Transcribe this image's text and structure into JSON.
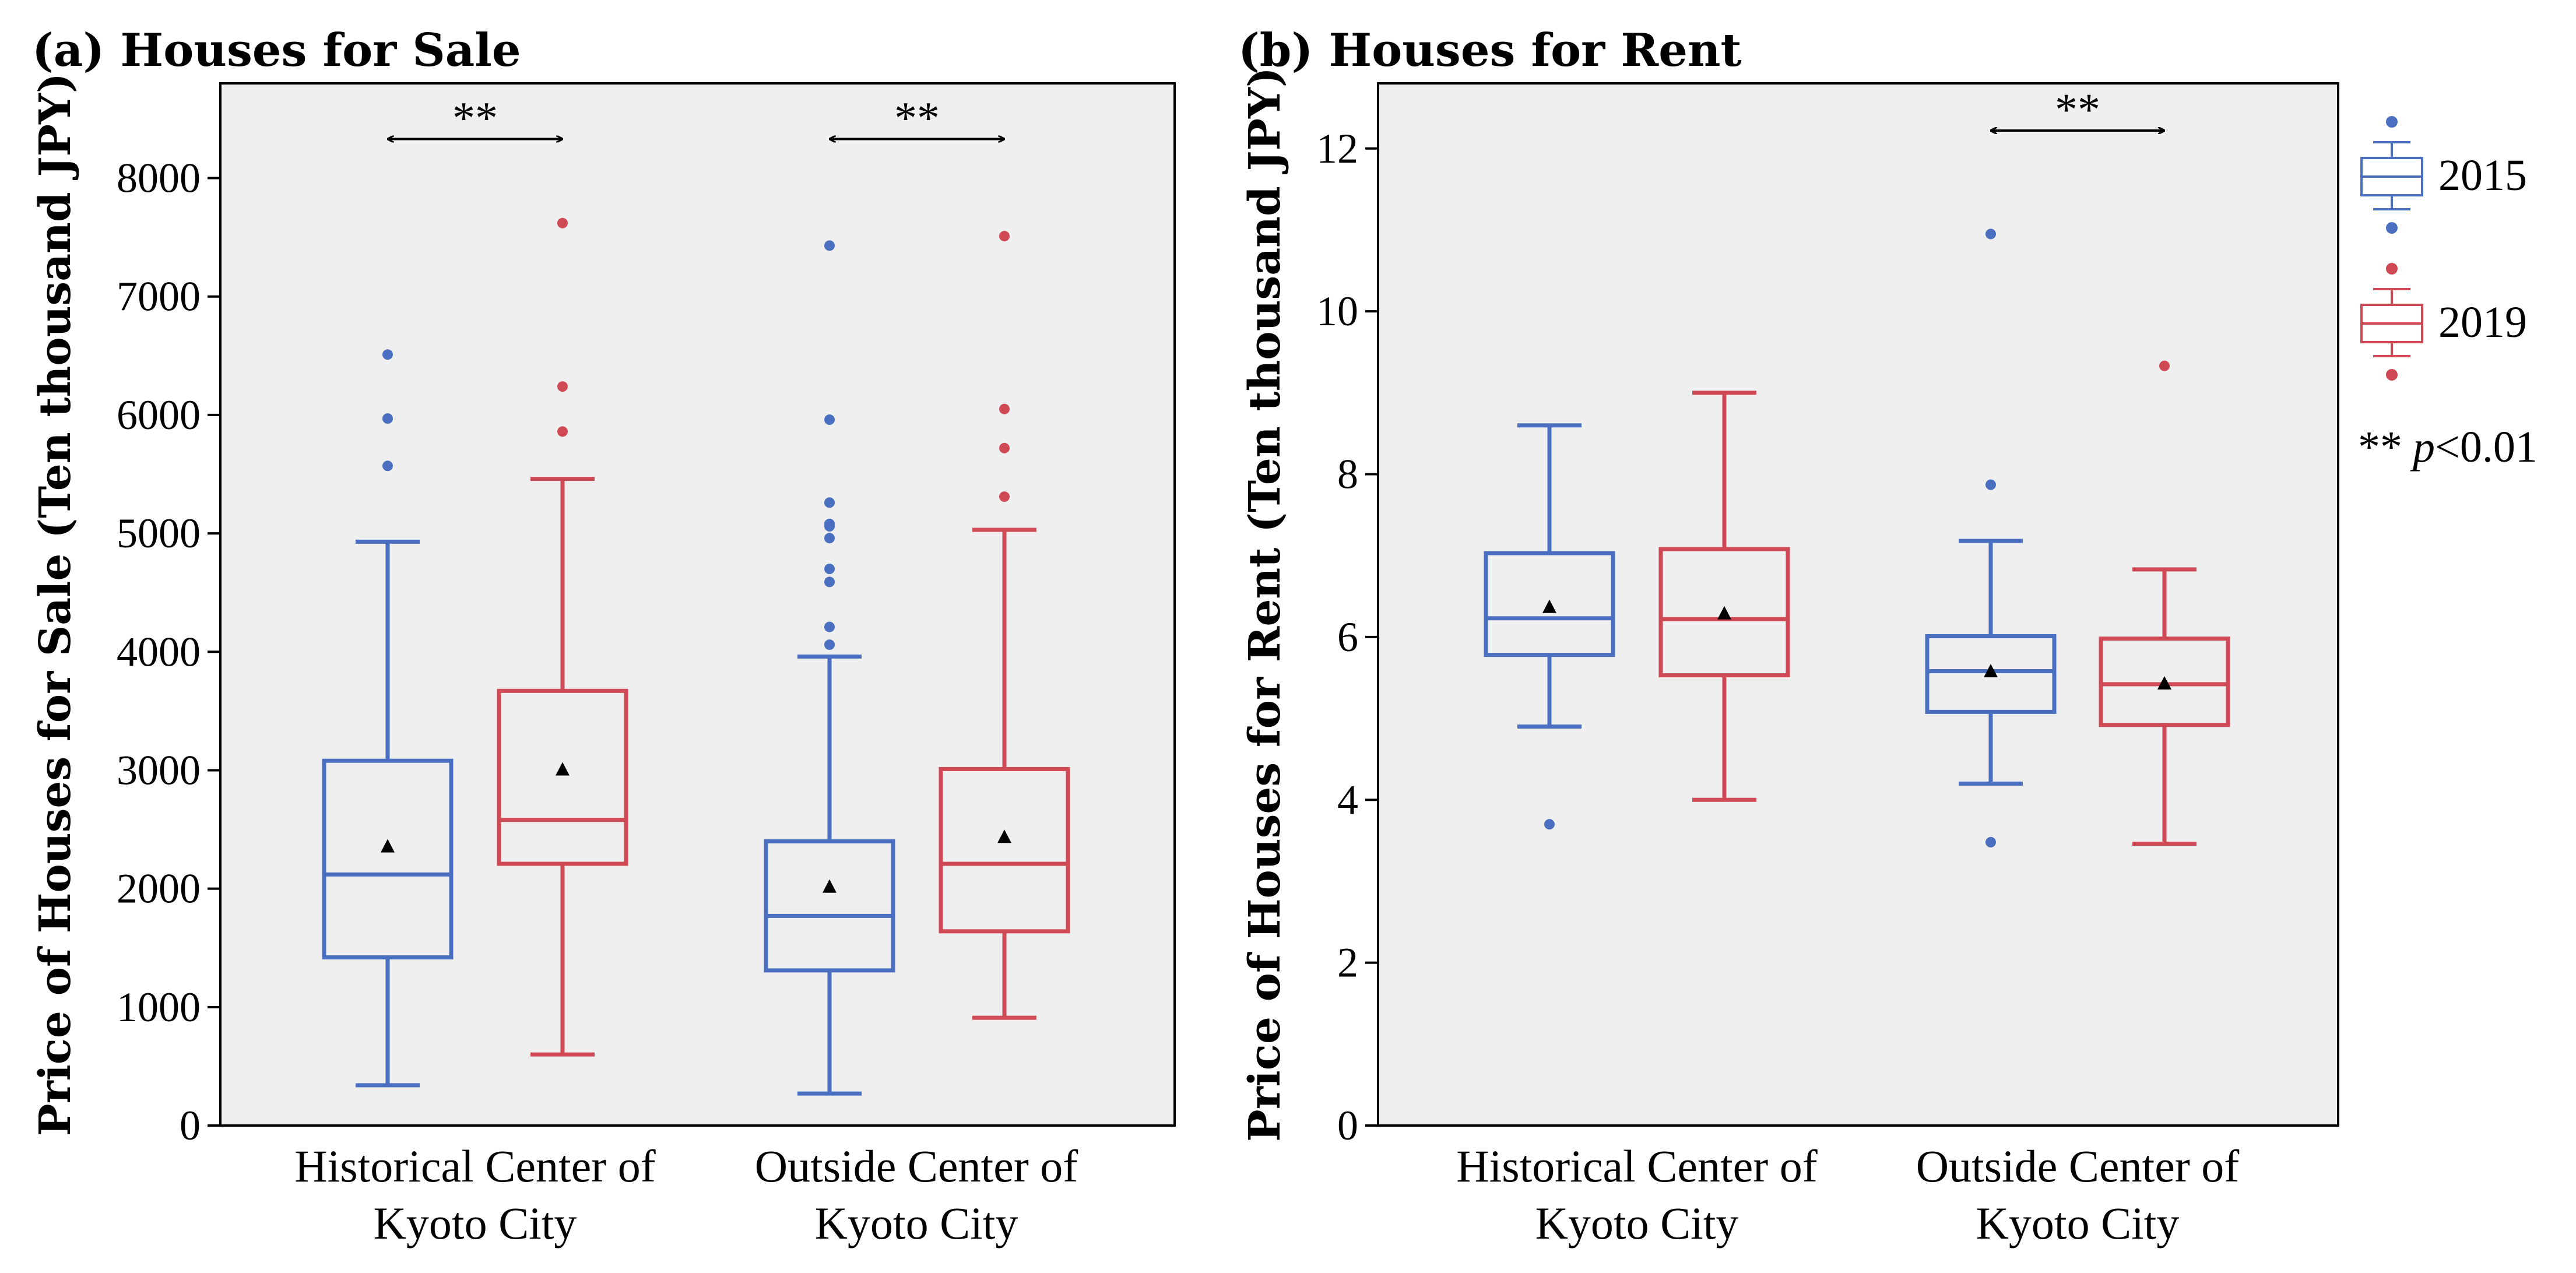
{
  "chart_data": [
    {
      "id": "a",
      "type": "box",
      "title": "(a) Houses for Sale",
      "ylabel": "Price of Houses for Sale (Ten thousand JPY)",
      "xlabel": "",
      "ylim": [
        0,
        8800
      ],
      "yticks": [
        0,
        1000,
        2000,
        3000,
        4000,
        5000,
        6000,
        7000,
        8000
      ],
      "categories": [
        {
          "line1": "Historical Center of",
          "line2": "Kyoto City"
        },
        {
          "line1": "Outside Center of",
          "line2": "Kyoto City"
        }
      ],
      "series": [
        {
          "name": "2015",
          "boxes": [
            {
              "min": 340,
              "q1": 1420,
              "median": 2120,
              "q3": 3080,
              "max": 4930,
              "mean": 2350,
              "outliers": [
                5570,
                5970,
                6510
              ]
            },
            {
              "min": 270,
              "q1": 1310,
              "median": 1770,
              "q3": 2400,
              "max": 3960,
              "mean": 2010,
              "outliers": [
                4060,
                4210,
                4590,
                4700,
                4960,
                5060,
                5080,
                5260,
                5960,
                7430
              ]
            }
          ]
        },
        {
          "name": "2019",
          "boxes": [
            {
              "min": 600,
              "q1": 2210,
              "median": 2580,
              "q3": 3670,
              "max": 5460,
              "mean": 3000,
              "outliers": [
                5860,
                6240,
                7620
              ]
            },
            {
              "min": 910,
              "q1": 1640,
              "median": 2210,
              "q3": 3010,
              "max": 5030,
              "mean": 2430,
              "outliers": [
                5310,
                5720,
                6050,
                7510
              ]
            }
          ]
        }
      ],
      "significance": [
        {
          "category": 0,
          "label": "**",
          "y": 8330
        },
        {
          "category": 1,
          "label": "**",
          "y": 8330
        }
      ]
    },
    {
      "id": "b",
      "type": "box",
      "title": "(b) Houses for Rent",
      "ylabel": "Price of Houses for Rent (Ten thousand JPY)",
      "xlabel": "",
      "ylim": [
        0,
        12.8
      ],
      "yticks": [
        0,
        2,
        4,
        6,
        8,
        10,
        12
      ],
      "categories": [
        {
          "line1": "Historical Center of",
          "line2": "Kyoto City"
        },
        {
          "line1": "Outside Center of",
          "line2": "Kyoto City"
        }
      ],
      "series": [
        {
          "name": "2015",
          "boxes": [
            {
              "min": 4.9,
              "q1": 5.78,
              "median": 6.23,
              "q3": 7.03,
              "max": 8.6,
              "mean": 6.36,
              "outliers": [
                3.7
              ]
            },
            {
              "min": 4.2,
              "q1": 5.08,
              "median": 5.58,
              "q3": 6.01,
              "max": 7.18,
              "mean": 5.57,
              "outliers": [
                3.48,
                7.87,
                10.95
              ]
            }
          ]
        },
        {
          "name": "2019",
          "boxes": [
            {
              "min": 4.0,
              "q1": 5.53,
              "median": 6.22,
              "q3": 7.08,
              "max": 9.0,
              "mean": 6.28,
              "outliers": []
            },
            {
              "min": 3.46,
              "q1": 4.92,
              "median": 5.42,
              "q3": 5.98,
              "max": 6.83,
              "mean": 5.42,
              "outliers": [
                9.33
              ]
            }
          ]
        }
      ],
      "significance": [
        {
          "category": 1,
          "label": "**",
          "y": 12.22
        }
      ]
    }
  ],
  "legend": {
    "items": [
      {
        "label": "2015",
        "color": "#4a6fc0"
      },
      {
        "label": "2019",
        "color": "#d04a55"
      }
    ],
    "note_stars": "**",
    "note_p": "p",
    "note_rest": "<0.01"
  },
  "colors": {
    "series_2015": "#4a6fc0",
    "series_2019": "#d04a55",
    "plot_bg": "#efefef"
  }
}
